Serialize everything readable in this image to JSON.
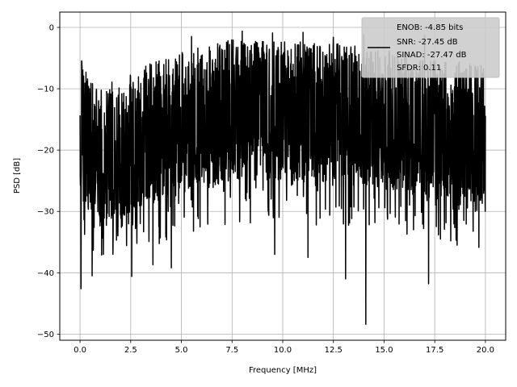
{
  "chart_data": {
    "type": "line",
    "title": "",
    "xlabel": "Frequency [MHz]",
    "ylabel": "PSD [dB]",
    "xlim": [
      -1,
      21
    ],
    "ylim": [
      -51,
      2.5
    ],
    "x_ticks": [
      0.0,
      2.5,
      5.0,
      7.5,
      10.0,
      12.5,
      15.0,
      17.5,
      20.0
    ],
    "x_tick_labels": [
      "0.0",
      "2.5",
      "5.0",
      "7.5",
      "10.0",
      "12.5",
      "15.0",
      "17.5",
      "20.0"
    ],
    "y_ticks": [
      0,
      -10,
      -20,
      -30,
      -40,
      -50
    ],
    "y_tick_labels": [
      "0",
      "−10",
      "−20",
      "−30",
      "−40",
      "−50"
    ],
    "grid": true,
    "legend_position": "top-right",
    "legend_lines": [
      "ENOB: -4.85 bits",
      "SNR: -27.45 dB",
      "SINAD: -27.47 dB",
      "SFDR: 0.11"
    ],
    "line_color": "#000000",
    "legend_bg": "#cccccc",
    "grid_color": "#b0b0b0",
    "series": [
      {
        "x_start": 0.0,
        "x_end": 20.0,
        "points": 2048,
        "noise_floor": [
          [
            0.0,
            -16.5
          ],
          [
            0.5,
            -20.0
          ],
          [
            1.0,
            -22.0
          ],
          [
            2.0,
            -20.0
          ],
          [
            3.0,
            -18.5
          ],
          [
            5.0,
            -16.0
          ],
          [
            7.5,
            -14.0
          ],
          [
            10.0,
            -14.0
          ],
          [
            12.5,
            -14.5
          ],
          [
            15.0,
            -15.5
          ],
          [
            17.5,
            -17.0
          ],
          [
            20.0,
            -18.0
          ]
        ],
        "peaks": [
          [
            0.1,
            -6.8
          ],
          [
            5.5,
            -1.5
          ],
          [
            8.0,
            -0.6
          ],
          [
            9.5,
            -0.9
          ],
          [
            11.0,
            -0.8
          ],
          [
            12.5,
            -1.6
          ],
          [
            14.0,
            -1.2
          ],
          [
            17.0,
            -1.3
          ],
          [
            19.5,
            -3.0
          ]
        ],
        "dips": [
          [
            0.05,
            -42.6
          ],
          [
            0.6,
            -40.5
          ],
          [
            1.15,
            -37.0
          ],
          [
            2.55,
            -40.6
          ],
          [
            3.6,
            -38.7
          ],
          [
            4.5,
            -39.2
          ],
          [
            9.6,
            -37.0
          ],
          [
            11.25,
            -37.5
          ],
          [
            13.1,
            -41.0
          ],
          [
            14.1,
            -48.4
          ],
          [
            17.2,
            -41.8
          ],
          [
            18.6,
            -35.5
          ],
          [
            19.5,
            -30.0
          ]
        ]
      }
    ]
  }
}
